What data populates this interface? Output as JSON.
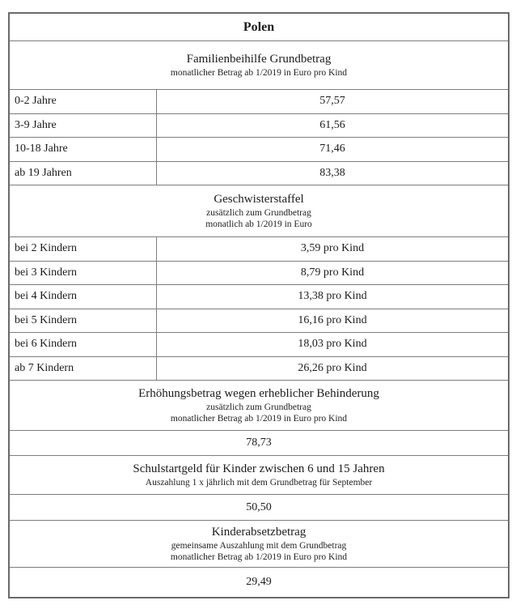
{
  "title": "Polen",
  "sections": [
    {
      "header": "Familienbeihilfe Grundbetrag",
      "subheaders": [
        "monatlicher Betrag ab 1/2019 in Euro pro Kind"
      ],
      "rows": [
        {
          "label": "0-2 Jahre",
          "value": "57,57"
        },
        {
          "label": "3-9 Jahre",
          "value": "61,56"
        },
        {
          "label": "10-18 Jahre",
          "value": "71,46"
        },
        {
          "label": "ab 19 Jahren",
          "value": "83,38"
        }
      ]
    },
    {
      "header": "Geschwisterstaffel",
      "subheaders": [
        "zusätzlich zum Grundbetrag",
        "monatlich ab 1/2019 in Euro"
      ],
      "rows": [
        {
          "label": "bei 2 Kindern",
          "value": "3,59 pro Kind"
        },
        {
          "label": "bei 3 Kindern",
          "value": "8,79 pro Kind"
        },
        {
          "label": "bei 4 Kindern",
          "value": "13,38 pro Kind"
        },
        {
          "label": "bei 5 Kindern",
          "value": "16,16 pro Kind"
        },
        {
          "label": "bei 6 Kindern",
          "value": "18,03 pro Kind"
        },
        {
          "label": "ab 7 Kindern",
          "value": "26,26 pro Kind"
        }
      ]
    },
    {
      "header": "Erhöhungsbetrag wegen erheblicher Behinderung",
      "subheaders": [
        "zusätzlich zum Grundbetrag",
        "monatlicher Betrag ab 1/2019 in Euro pro Kind"
      ],
      "full_value": "78,73"
    },
    {
      "header": "Schulstartgeld für Kinder zwischen 6 und 15 Jahren",
      "subheaders": [
        "Auszahlung 1 x jährlich mit dem Grundbetrag für September"
      ],
      "full_value": "50,50"
    },
    {
      "header": "Kinderabsetzbetrag",
      "subheaders": [
        "gemeinsame Auszahlung mit dem Grundbetrag",
        "monatlicher Betrag ab 1/2019 in Euro pro Kind"
      ],
      "full_value": "29,49"
    }
  ]
}
